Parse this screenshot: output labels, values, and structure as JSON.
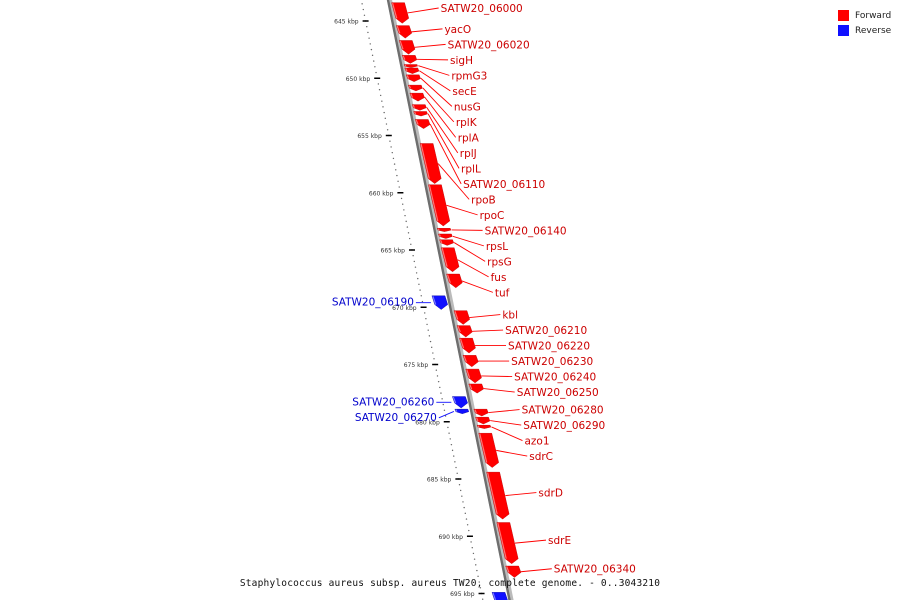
{
  "legend": {
    "forward_label": "Forward",
    "reverse_label": "Reverse",
    "forward_color": "#ff0000",
    "reverse_color": "#1010ff"
  },
  "caption": "Staphylococcus aureus subsp. aureus TW20, complete genome. - 0..3043210",
  "scale": {
    "ticks": [
      {
        "kbp": 645,
        "label": "645 kbp"
      },
      {
        "kbp": 650,
        "label": "650 kbp"
      },
      {
        "kbp": 655,
        "label": "655 kbp"
      },
      {
        "kbp": 660,
        "label": "660 kbp"
      },
      {
        "kbp": 665,
        "label": "665 kbp"
      },
      {
        "kbp": 670,
        "label": "670 kbp"
      },
      {
        "kbp": 675,
        "label": "675 kbp"
      },
      {
        "kbp": 680,
        "label": "680 kbp"
      },
      {
        "kbp": 685,
        "label": "685 kbp"
      },
      {
        "kbp": 690,
        "label": "690 kbp"
      },
      {
        "kbp": 695,
        "label": "695 kbp"
      }
    ]
  },
  "genes": [
    {
      "name": "SATW20_06000",
      "strand": "forward",
      "start": 643.4,
      "end": 645.2
    },
    {
      "name": "yacO",
      "strand": "forward",
      "start": 645.4,
      "end": 646.5
    },
    {
      "name": "SATW20_06020",
      "strand": "forward",
      "start": 646.7,
      "end": 647.9
    },
    {
      "name": "sigH",
      "strand": "forward",
      "start": 648.0,
      "end": 648.7
    },
    {
      "name": "rpmG3",
      "strand": "forward",
      "start": 648.8,
      "end": 649.0
    },
    {
      "name": "secE",
      "strand": "forward",
      "start": 649.1,
      "end": 649.6
    },
    {
      "name": "nusG",
      "strand": "forward",
      "start": 649.7,
      "end": 650.3
    },
    {
      "name": "rplK",
      "strand": "forward",
      "start": 650.6,
      "end": 651.1
    },
    {
      "name": "rplA",
      "strand": "forward",
      "start": 651.3,
      "end": 652.0
    },
    {
      "name": "rplJ",
      "strand": "forward",
      "start": 652.3,
      "end": 652.8
    },
    {
      "name": "rplL",
      "strand": "forward",
      "start": 652.9,
      "end": 653.3
    },
    {
      "name": "SATW20_06110",
      "strand": "forward",
      "start": 653.6,
      "end": 654.4
    },
    {
      "name": "rpoB",
      "strand": "forward",
      "start": 655.7,
      "end": 659.2
    },
    {
      "name": "rpoC",
      "strand": "forward",
      "start": 659.3,
      "end": 662.9
    },
    {
      "name": "SATW20_06140",
      "strand": "forward",
      "start": 663.1,
      "end": 663.4
    },
    {
      "name": "rpsL",
      "strand": "forward",
      "start": 663.6,
      "end": 664.0
    },
    {
      "name": "rpsG",
      "strand": "forward",
      "start": 664.1,
      "end": 664.6
    },
    {
      "name": "fus",
      "strand": "forward",
      "start": 664.8,
      "end": 666.9
    },
    {
      "name": "tuf",
      "strand": "forward",
      "start": 667.1,
      "end": 668.3
    },
    {
      "name": "SATW20_06190",
      "strand": "reverse",
      "start": 669.0,
      "end": 670.2
    },
    {
      "name": "kbl",
      "strand": "forward",
      "start": 670.3,
      "end": 671.5
    },
    {
      "name": "SATW20_06210",
      "strand": "forward",
      "start": 671.6,
      "end": 672.6
    },
    {
      "name": "SATW20_06220",
      "strand": "forward",
      "start": 672.7,
      "end": 674.0
    },
    {
      "name": "SATW20_06230",
      "strand": "forward",
      "start": 674.2,
      "end": 675.2
    },
    {
      "name": "SATW20_06240",
      "strand": "forward",
      "start": 675.4,
      "end": 676.6
    },
    {
      "name": "SATW20_06250",
      "strand": "forward",
      "start": 676.7,
      "end": 677.5
    },
    {
      "name": "SATW20_06260",
      "strand": "reverse",
      "start": 677.8,
      "end": 678.8
    },
    {
      "name": "SATW20_06270",
      "strand": "reverse",
      "start": 678.9,
      "end": 679.3
    },
    {
      "name": "SATW20_06280",
      "strand": "forward",
      "start": 678.9,
      "end": 679.5
    },
    {
      "name": "SATW20_06290",
      "strand": "forward",
      "start": 679.6,
      "end": 680.2
    },
    {
      "name": "azo1",
      "strand": "forward",
      "start": 680.3,
      "end": 680.6
    },
    {
      "name": "sdrC",
      "strand": "forward",
      "start": 681.0,
      "end": 684.0
    },
    {
      "name": "sdrD",
      "strand": "forward",
      "start": 684.4,
      "end": 688.5
    },
    {
      "name": "sdrE",
      "strand": "forward",
      "start": 688.8,
      "end": 692.4
    },
    {
      "name": "SATW20_06340",
      "strand": "forward",
      "start": 692.6,
      "end": 693.6
    },
    {
      "name": "",
      "strand": "reverse",
      "start": 694.9,
      "end": 696.0
    }
  ]
}
